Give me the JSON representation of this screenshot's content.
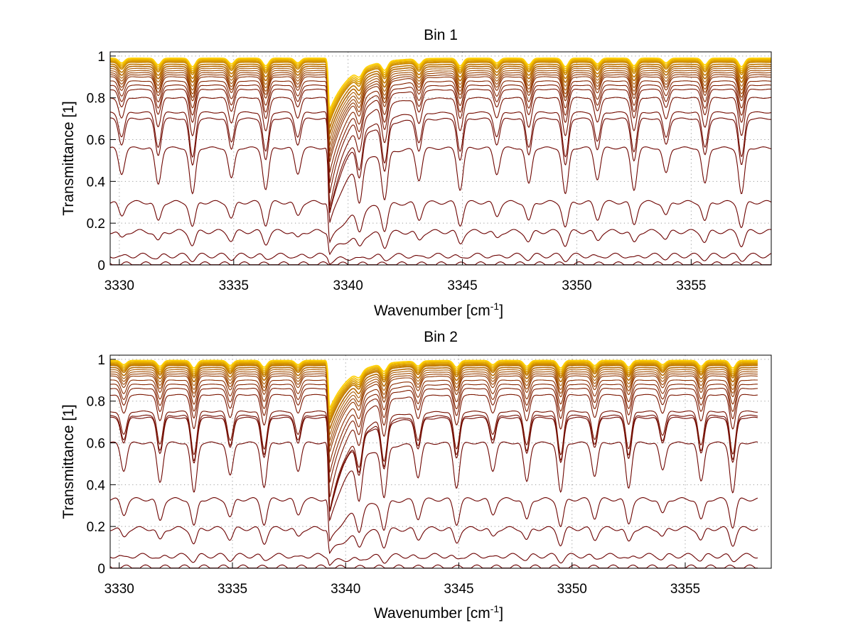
{
  "chart_data": [
    {
      "type": "line",
      "title": "Bin 1",
      "xlabel": "Wavenumber [cm",
      "xlabel_sup": "-1",
      "xlabel_end": "]",
      "ylabel": "Transmittance [1]",
      "xlim": [
        3329.6,
        3358.5
      ],
      "ylim": [
        0,
        1.02
      ],
      "xticks": [
        3330,
        3335,
        3340,
        3345,
        3350,
        3355
      ],
      "yticks": [
        0,
        0.2,
        0.4,
        0.6,
        0.8,
        1
      ],
      "ytick_labels": [
        "0",
        "0.2",
        "0.4",
        "0.6",
        "0.8",
        "1"
      ],
      "grid": true,
      "color_range": [
        "#6b0000",
        "#ffd000"
      ],
      "series_baselines": [
        0.99,
        0.985,
        0.98,
        0.975,
        0.97,
        0.96,
        0.95,
        0.94,
        0.93,
        0.92,
        0.91,
        0.9,
        0.88,
        0.86,
        0.84,
        0.8,
        0.73,
        0.7,
        0.56,
        0.3,
        0.16,
        0.045,
        0.003
      ],
      "strong_line": {
        "x": 3339.2,
        "min_fraction": 0.28
      },
      "weak_lines": [
        3330.1,
        3331.7,
        3333.2,
        3334.9,
        3336.4,
        3337.8,
        3340.5,
        3341.6,
        3343.1,
        3344.9,
        3346.5,
        3347.9,
        3349.5,
        3350.9,
        3352.5,
        3353.9,
        3355.6,
        3357.2
      ]
    },
    {
      "type": "line",
      "title": "Bin 2",
      "xlabel": "Wavenumber [cm",
      "xlabel_sup": "-1",
      "xlabel_end": "]",
      "ylabel": "Transmittance [1]",
      "xlim": [
        3329.6,
        3358.8
      ],
      "ylim": [
        0,
        1.02
      ],
      "xmax_data": 3358.2,
      "xticks": [
        3330,
        3335,
        3340,
        3345,
        3350,
        3355
      ],
      "yticks": [
        0,
        0.2,
        0.4,
        0.6,
        0.8,
        1
      ],
      "ytick_labels": [
        "0",
        "0.2",
        "0.4",
        "0.6",
        "0.8",
        "1"
      ],
      "grid": true,
      "color_range": [
        "#6b0000",
        "#ffd000"
      ],
      "series_baselines": [
        0.995,
        0.99,
        0.985,
        0.98,
        0.975,
        0.97,
        0.96,
        0.95,
        0.94,
        0.93,
        0.92,
        0.9,
        0.88,
        0.86,
        0.83,
        0.75,
        0.73,
        0.72,
        0.6,
        0.33,
        0.19,
        0.06,
        0.004
      ],
      "strong_line": {
        "x": 3339.3,
        "min_fraction": 0.3
      },
      "weak_lines": [
        3330.2,
        3331.8,
        3333.3,
        3334.9,
        3336.4,
        3337.9,
        3340.6,
        3341.7,
        3343.2,
        3344.9,
        3346.5,
        3348.0,
        3349.5,
        3351.0,
        3352.5,
        3354.0,
        3355.7,
        3357.1
      ]
    }
  ]
}
